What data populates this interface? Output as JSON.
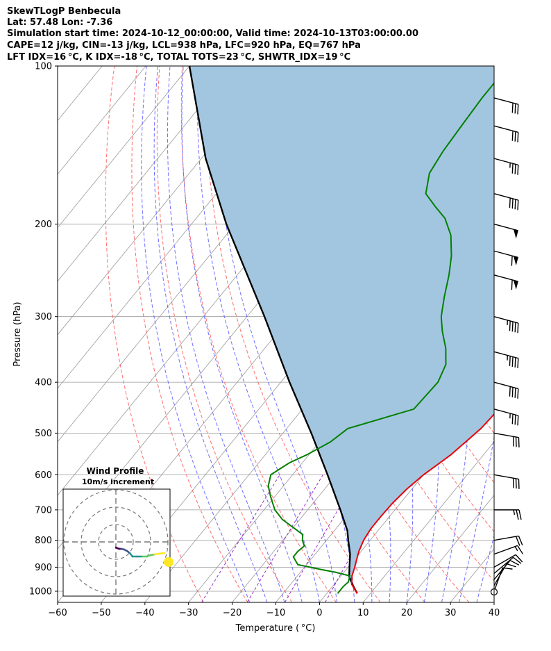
{
  "header": {
    "line1": "SkewTLogP Benbecula",
    "line2": "Lat: 57.48   Lon: -7.36",
    "line3": "Simulation start time: 2024-10-12_00:00:00, Valid time: 2024-10-13T03:00:00.00",
    "line4": "CAPE=12 j/kg, CIN=-13 j/kg, LCL=938 hPa, LFC=920 hPa, EQ=767 hPa",
    "line5": "LFT IDX=16 °C, K IDX=-18 °C, TOTAL TOTS=23 °C, SHWTR_IDX=19 °C"
  },
  "colors": {
    "temperature": "#e8000b",
    "dewpoint": "#008000",
    "parcel": "#000000",
    "cape_fill": "#a3c6e0",
    "dry_adiabat": "#ff5555",
    "moist_adiabat": "#5555ff",
    "mixing_ratio": "#9b30c8",
    "isotherm": "#999999"
  },
  "chart_data": {
    "type": "skewt",
    "xlabel": "Temperature ( °C)",
    "ylabel": "Pressure (hPa)",
    "xlim": [
      -60,
      40
    ],
    "ylim": [
      1050,
      100
    ],
    "x_ticks": [
      "−60",
      "−50",
      "−40",
      "−30",
      "−20",
      "−10",
      "0",
      "10",
      "20",
      "30",
      "40"
    ],
    "y_ticks": [
      "100",
      "200",
      "300",
      "400",
      "500",
      "600",
      "700",
      "800",
      "900",
      "1000"
    ],
    "grid": true,
    "series": [
      {
        "key": "temperature",
        "points": [
          [
            1010,
            7.0
          ],
          [
            990,
            5.5
          ],
          [
            970,
            4.0
          ],
          [
            935,
            2.5
          ],
          [
            900,
            1.5
          ],
          [
            870,
            0.5
          ],
          [
            840,
            -0.5
          ],
          [
            800,
            -1.5
          ],
          [
            760,
            -2.0
          ],
          [
            720,
            -2.0
          ],
          [
            680,
            -1.8
          ],
          [
            640,
            -1.2
          ],
          [
            600,
            0.0
          ],
          [
            570,
            1.5
          ],
          [
            550,
            2.5
          ],
          [
            520,
            3.5
          ],
          [
            490,
            4.5
          ],
          [
            450,
            5.0
          ],
          [
            410,
            4.0
          ],
          [
            370,
            2.0
          ],
          [
            340,
            0.0
          ],
          [
            310,
            -3.0
          ],
          [
            280,
            -7.0
          ],
          [
            250,
            -12.0
          ],
          [
            225,
            -17.5
          ],
          [
            205,
            -22.0
          ],
          [
            195,
            -23.0
          ],
          [
            180,
            -24.5
          ],
          [
            170,
            -26.0
          ],
          [
            160,
            -30.0
          ],
          [
            150,
            -32.0
          ],
          [
            140,
            -34.0
          ],
          [
            130,
            -37.5
          ],
          [
            120,
            -40.0
          ],
          [
            110,
            -43.0
          ],
          [
            100,
            -47.0
          ]
        ]
      },
      {
        "key": "dewpoint",
        "points": [
          [
            1010,
            2.5
          ],
          [
            980,
            2.5
          ],
          [
            960,
            2.8
          ],
          [
            935,
            2.0
          ],
          [
            920,
            -2.0
          ],
          [
            910,
            -5.5
          ],
          [
            890,
            -12.0
          ],
          [
            860,
            -14.5
          ],
          [
            840,
            -14.5
          ],
          [
            820,
            -14.0
          ],
          [
            800,
            -15.5
          ],
          [
            780,
            -16.5
          ],
          [
            730,
            -24.0
          ],
          [
            700,
            -27.5
          ],
          [
            660,
            -31.0
          ],
          [
            630,
            -33.5
          ],
          [
            600,
            -35.0
          ],
          [
            570,
            -33.0
          ],
          [
            550,
            -30.5
          ],
          [
            520,
            -27.5
          ],
          [
            490,
            -26.0
          ],
          [
            450,
            -14.5
          ],
          [
            400,
            -14.0
          ],
          [
            370,
            -15.5
          ],
          [
            345,
            -18.5
          ],
          [
            320,
            -22.5
          ],
          [
            300,
            -25.5
          ],
          [
            275,
            -28.5
          ],
          [
            250,
            -31.5
          ],
          [
            230,
            -34.5
          ],
          [
            210,
            -38.5
          ],
          [
            195,
            -43.0
          ],
          [
            185,
            -47.5
          ],
          [
            175,
            -52.0
          ],
          [
            160,
            -55.0
          ],
          [
            145,
            -56.0
          ],
          [
            130,
            -56.5
          ],
          [
            115,
            -57.0
          ],
          [
            100,
            -57.0
          ]
        ]
      },
      {
        "key": "parcel",
        "points": [
          [
            1010,
            7.0
          ],
          [
            975,
            4.5
          ],
          [
            938,
            2.0
          ],
          [
            900,
            0.3
          ],
          [
            850,
            -2.0
          ],
          [
            800,
            -5.0
          ],
          [
            767,
            -7.0
          ],
          [
            700,
            -12.5
          ],
          [
            600,
            -22.0
          ],
          [
            500,
            -33.5
          ],
          [
            400,
            -48.0
          ],
          [
            300,
            -66.0
          ],
          [
            200,
            -92.0
          ],
          [
            150,
            -109.0
          ],
          [
            100,
            -130.0
          ]
        ]
      }
    ],
    "wind_barbs": [
      {
        "p": 1000,
        "speed": 10,
        "dir": 200
      },
      {
        "p": 975,
        "speed": 10,
        "dir": 210
      },
      {
        "p": 950,
        "speed": 10,
        "dir": 220
      },
      {
        "p": 925,
        "speed": 10,
        "dir": 230
      },
      {
        "p": 900,
        "speed": 10,
        "dir": 240
      },
      {
        "p": 850,
        "speed": 15,
        "dir": 250
      },
      {
        "p": 800,
        "speed": 20,
        "dir": 260
      },
      {
        "p": 700,
        "speed": 25,
        "dir": 270
      },
      {
        "p": 600,
        "speed": 30,
        "dir": 280
      },
      {
        "p": 500,
        "speed": 30,
        "dir": 280
      },
      {
        "p": 450,
        "speed": 35,
        "dir": 285
      },
      {
        "p": 400,
        "speed": 40,
        "dir": 285
      },
      {
        "p": 350,
        "speed": 45,
        "dir": 285
      },
      {
        "p": 300,
        "speed": 45,
        "dir": 285
      },
      {
        "p": 250,
        "speed": 60,
        "dir": 285
      },
      {
        "p": 225,
        "speed": 60,
        "dir": 285
      },
      {
        "p": 200,
        "speed": 50,
        "dir": 285
      },
      {
        "p": 175,
        "speed": 40,
        "dir": 285
      },
      {
        "p": 150,
        "speed": 35,
        "dir": 285
      },
      {
        "p": 130,
        "speed": 30,
        "dir": 285
      },
      {
        "p": 115,
        "speed": 30,
        "dir": 285
      }
    ],
    "hodograph": {
      "title": "Wind Profile",
      "subtitle": "10m/s increment",
      "points": [
        [
          0,
          0
        ],
        [
          2,
          -1
        ],
        [
          5,
          -2
        ],
        [
          8,
          -2
        ],
        [
          12,
          -3
        ],
        [
          16,
          -5
        ],
        [
          20,
          -8
        ],
        [
          24,
          -13
        ],
        [
          30,
          -13
        ],
        [
          38,
          -13
        ],
        [
          44,
          -13
        ],
        [
          50,
          -11
        ],
        [
          56,
          -10
        ],
        [
          62,
          -9
        ],
        [
          70,
          -8
        ]
      ]
    }
  }
}
